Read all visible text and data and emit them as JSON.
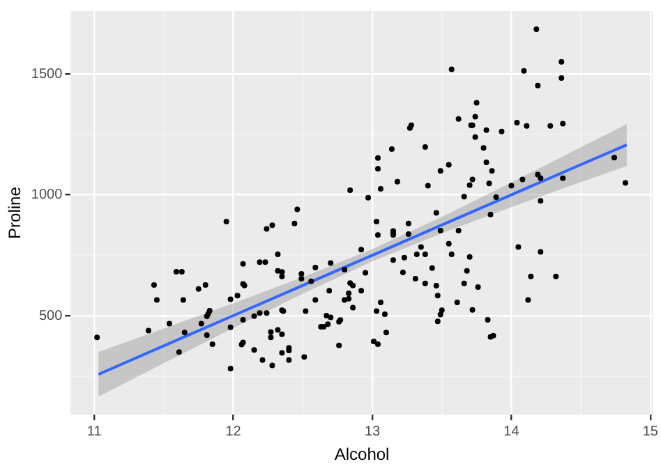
{
  "chart_data": {
    "type": "scatter",
    "xlabel": "Alcohol",
    "ylabel": "Proline",
    "xlim": [
      10.83,
      15.02
    ],
    "ylim": [
      90,
      1760
    ],
    "xticks": [
      11,
      {
        "value": 11.5,
        "label": null
      },
      12,
      {
        "value": 12.5,
        "label": null
      },
      13,
      {
        "value": 13.5,
        "label": null
      },
      14,
      {
        "value": 14.5,
        "label": null
      },
      15
    ],
    "yticks": [
      {
        "value": 250,
        "label": null
      },
      500,
      {
        "value": 750,
        "label": null
      },
      1000,
      {
        "value": 1250,
        "label": null
      },
      1500
    ],
    "grid": true,
    "legend": false,
    "marker": "circle",
    "series": [
      {
        "color": "#000000",
        "x": [
          11.95,
          12.24,
          12.28,
          12.44,
          12.46,
          12.84,
          14.18,
          14.36,
          14.36,
          14.09,
          14.19,
          13.57,
          13.75,
          13.74,
          13.62,
          13.71,
          13.72,
          13.74,
          13.82,
          13.93,
          14.04,
          14.11,
          14.28,
          14.37,
          13.28,
          13.27,
          13.8,
          13.38,
          13.14,
          13.04,
          13.04,
          13.55,
          13.49,
          13.82,
          13.86,
          14.74,
          14.82,
          12.97,
          13.06,
          13.18,
          13.4,
          13.7,
          13.72,
          13.84,
          14.0,
          14.08,
          14.19,
          14.21,
          14.37,
          14.21,
          13.66,
          13.89,
          13.85,
          13.46,
          13.03,
          13.26,
          13.15,
          13.49,
          13.62,
          11.02,
          11.39,
          11.43,
          11.45,
          11.54,
          11.59,
          11.63,
          11.64,
          11.65,
          11.61,
          11.75,
          11.8,
          11.77,
          11.81,
          11.82,
          11.83,
          11.81,
          11.85,
          11.98,
          12.03,
          12.07,
          12.07,
          12.08,
          11.98,
          12.07,
          12.06,
          12.07,
          11.98,
          12.15,
          12.15,
          12.19,
          12.23,
          12.19,
          12.24,
          12.27,
          12.27,
          12.21,
          12.28,
          12.32,
          12.32,
          12.35,
          12.35,
          12.32,
          12.35,
          12.35,
          12.36,
          12.35,
          12.4,
          12.4,
          12.4,
          12.49,
          12.49,
          12.52,
          12.51,
          12.59,
          12.56,
          12.59,
          12.7,
          12.69,
          12.63,
          12.65,
          12.68,
          12.67,
          12.7,
          12.77,
          12.76,
          12.76,
          12.8,
          12.8,
          12.83,
          12.83,
          12.84,
          12.86,
          12.86,
          13.04,
          13.15,
          13.15,
          13.26,
          12.92,
          12.95,
          12.92,
          13.15,
          13.23,
          13.22,
          13.32,
          13.38,
          13.35,
          13.55,
          13.57,
          13.7,
          13.31,
          13.38,
          13.43,
          13.46,
          13.47,
          13.5,
          13.49,
          13.47,
          13.68,
          13.66,
          13.61,
          13.76,
          13.72,
          13.83,
          13.85,
          13.87,
          13.03,
          13.06,
          13.09,
          13.1,
          13.01,
          13.04,
          14.05,
          14.21,
          14.14,
          14.32,
          14.12
        ],
        "values": [
          889,
          859,
          874,
          881,
          940,
          1019,
          1685,
          1550,
          1483,
          1513,
          1452,
          1519,
          1381,
          1323,
          1314,
          1288,
          1288,
          1239,
          1268,
          1262,
          1299,
          1285,
          1285,
          1294,
          1288,
          1276,
          1194,
          1198,
          1189,
          1152,
          1108,
          1124,
          1099,
          1134,
          1099,
          1154,
          1049,
          988,
          1025,
          1054,
          1038,
          1040,
          1064,
          1047,
          1038,
          1064,
          1084,
          1069,
          1069,
          975,
          992,
          990,
          918,
          925,
          889,
          881,
          850,
          852,
          852,
          410,
          438,
          627,
          565,
          467,
          682,
          682,
          565,
          430,
          349,
          610,
          627,
          467,
          497,
          508,
          520,
          419,
          382,
          568,
          583,
          714,
          631,
          625,
          452,
          483,
          380,
          389,
          281,
          358,
          498,
          721,
          721,
          511,
          511,
          432,
          410,
          316,
          294,
          754,
          685,
          681,
          662,
          441,
          423,
          522,
          519,
          346,
          367,
          356,
          316,
          673,
          653,
          519,
          329,
          699,
          642,
          565,
          718,
          603,
          454,
          454,
          465,
          500,
          493,
          482,
          475,
          377,
          690,
          565,
          570,
          592,
          635,
          625,
          533,
          834,
          841,
          834,
          837,
          773,
          677,
          603,
          730,
          740,
          679,
          754,
          754,
          784,
          798,
          754,
          743,
          653,
          633,
          697,
          624,
          583,
          522,
          504,
          476,
          685,
          633,
          555,
          618,
          524,
          483,
          412,
          417,
          519,
          555,
          506,
          430,
          393,
          382,
          784,
          764,
          662,
          662,
          565
        ]
      },
      {
        "type": "line",
        "color": "#3366ff",
        "marker": "none",
        "x": [
          11.03,
          11.5,
          12,
          12.5,
          13,
          13.5,
          14,
          14.5,
          14.83
        ],
        "values": [
          257,
          375,
          500,
          625,
          750,
          875,
          1000,
          1125,
          1207
        ],
        "lower": [
          165,
          303,
          449,
          591,
          725,
          841,
          949,
          1053,
          1119
        ],
        "upper": [
          349,
          447,
          551,
          659,
          775,
          909,
          1051,
          1197,
          1292
        ]
      }
    ]
  }
}
